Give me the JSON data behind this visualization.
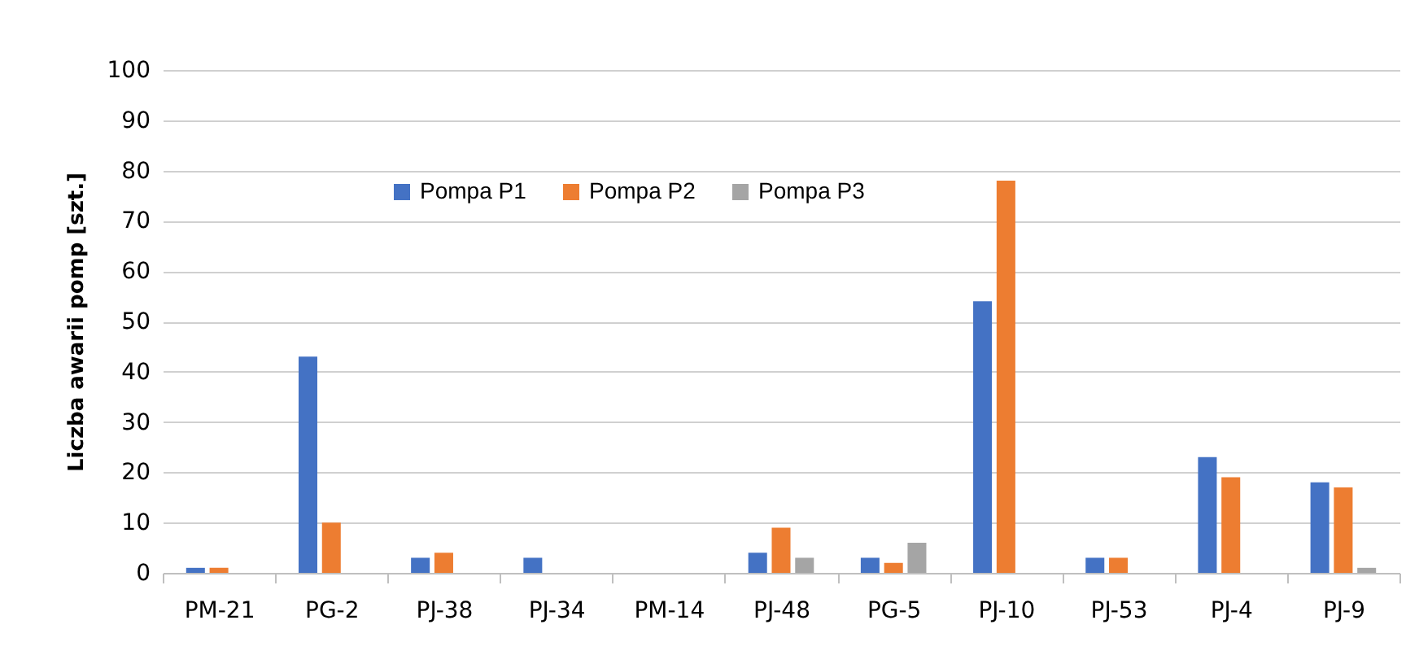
{
  "chart_data": {
    "type": "bar",
    "ylabel": "Liczba awarii pomp [szt.]",
    "categories": [
      "PM-21",
      "PG-2",
      "PJ-38",
      "PJ-34",
      "PM-14",
      "PJ-48",
      "PG-5",
      "PJ-10",
      "PJ-53",
      "PJ-4",
      "PJ-9"
    ],
    "series": [
      {
        "name": "Pompa P1",
        "color": "#4472c4",
        "values": [
          1,
          43,
          3,
          3,
          0,
          4,
          3,
          54,
          3,
          23,
          18
        ]
      },
      {
        "name": "Pompa P2",
        "color": "#ed7d31",
        "values": [
          1,
          10,
          4,
          0,
          0,
          9,
          2,
          78,
          3,
          19,
          17
        ]
      },
      {
        "name": "Pompa P3",
        "color": "#a5a5a5",
        "values": [
          0,
          0,
          0,
          0,
          0,
          3,
          6,
          0,
          0,
          0,
          1
        ]
      }
    ],
    "ylim": [
      0,
      100
    ],
    "yticks": [
      0,
      10,
      20,
      30,
      40,
      50,
      60,
      70,
      80,
      90,
      100
    ],
    "grid": "y",
    "legend": "top"
  }
}
